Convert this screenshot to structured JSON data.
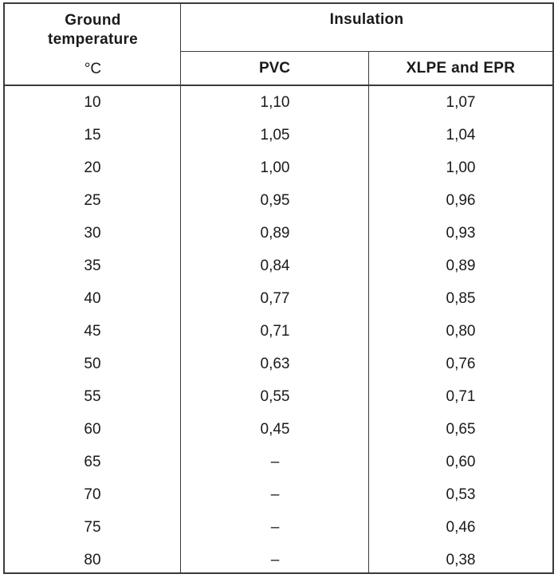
{
  "table": {
    "header": {
      "temp_line1": "Ground",
      "temp_line2": "temperature",
      "temp_unit": "°C",
      "insulation": "Insulation",
      "pvc": "PVC",
      "xlpe_epr": "XLPE and EPR"
    },
    "rows": [
      {
        "temp": "10",
        "pvc": "1,10",
        "xlpe": "1,07"
      },
      {
        "temp": "15",
        "pvc": "1,05",
        "xlpe": "1,04"
      },
      {
        "temp": "20",
        "pvc": "1,00",
        "xlpe": "1,00"
      },
      {
        "temp": "25",
        "pvc": "0,95",
        "xlpe": "0,96"
      },
      {
        "temp": "30",
        "pvc": "0,89",
        "xlpe": "0,93"
      },
      {
        "temp": "35",
        "pvc": "0,84",
        "xlpe": "0,89"
      },
      {
        "temp": "40",
        "pvc": "0,77",
        "xlpe": "0,85"
      },
      {
        "temp": "45",
        "pvc": "0,71",
        "xlpe": "0,80"
      },
      {
        "temp": "50",
        "pvc": "0,63",
        "xlpe": "0,76"
      },
      {
        "temp": "55",
        "pvc": "0,55",
        "xlpe": "0,71"
      },
      {
        "temp": "60",
        "pvc": "0,45",
        "xlpe": "0,65"
      },
      {
        "temp": "65",
        "pvc": "–",
        "xlpe": "0,60"
      },
      {
        "temp": "70",
        "pvc": "–",
        "xlpe": "0,53"
      },
      {
        "temp": "75",
        "pvc": "–",
        "xlpe": "0,46"
      },
      {
        "temp": "80",
        "pvc": "–",
        "xlpe": "0,38"
      }
    ]
  }
}
